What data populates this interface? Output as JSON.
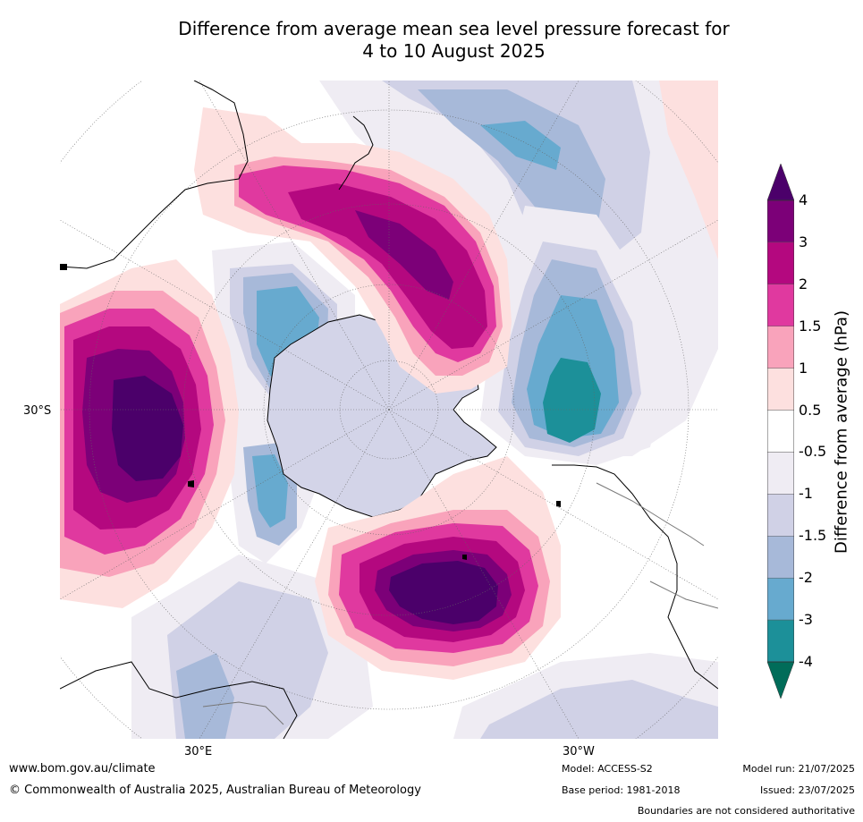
{
  "title_line1": "Difference from average mean sea level pressure forecast for",
  "title_line2": "4 to 10 August 2025",
  "map": {
    "lat_label": "30°S",
    "lon_label_east": "30°E",
    "lon_label_west": "30°W",
    "colors": {
      "ocean": "#ffffff",
      "pos_0_5": "#fde0df",
      "pos_1": "#f9a3bb",
      "pos_1_5": "#e0399f",
      "pos_2": "#b4087f",
      "pos_3": "#7c0078",
      "pos_4": "#4b006a",
      "neg_0_5": "#efecf3",
      "neg_1": "#d0d1e6",
      "neg_1_5": "#a7b9d9",
      "neg_2": "#67aacf",
      "neg_3": "#1c9099",
      "neg_4": "#016c59"
    }
  },
  "colorbar": {
    "title": "Difference from average (hPa)",
    "labels": [
      "4",
      "3",
      "2",
      "1.5",
      "1",
      "0.5",
      "-0.5",
      "-1",
      "-1.5",
      "-2",
      "-3",
      "-4"
    ],
    "colors": [
      "#7c0078",
      "#b4087f",
      "#e0399f",
      "#f9a3bb",
      "#fde0df",
      "#ffffff",
      "#efecf3",
      "#d0d1e6",
      "#a7b9d9",
      "#67aacf",
      "#1c9099"
    ],
    "extend_top_color": "#4b006a",
    "extend_bottom_color": "#016c59"
  },
  "footer": {
    "website": "www.bom.gov.au/climate",
    "copyright": "© Commonwealth of Australia 2025, Australian Bureau of Meteorology",
    "model": "Model: ACCESS-S2",
    "base_period": "Base period: 1981-2018",
    "model_run": "Model run: 21/07/2025",
    "issued": "Issued: 23/07/2025",
    "disclaimer": "Boundaries are not considered authoritative"
  }
}
